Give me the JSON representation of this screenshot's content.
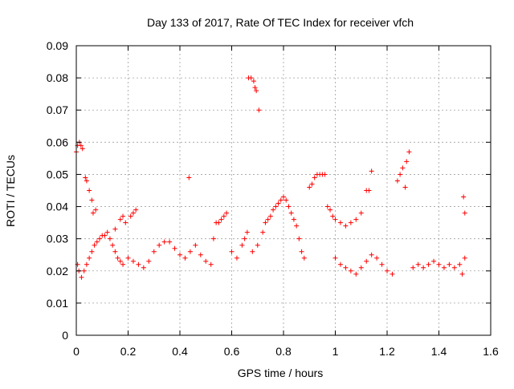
{
  "chart_data": {
    "type": "scatter",
    "title": "Day 133 of 2017, Rate Of TEC Index for receiver vfch",
    "xlabel": "GPS time / hours",
    "ylabel": "ROTI / TECUs",
    "xlim": [
      0,
      1.6
    ],
    "ylim": [
      0,
      0.09
    ],
    "xticks": [
      "0",
      "0.2",
      "0.4",
      "0.6",
      "0.8",
      "1",
      "1.2",
      "1.4",
      "1.6"
    ],
    "yticks": [
      "0",
      "0.01",
      "0.02",
      "0.03",
      "0.04",
      "0.05",
      "0.06",
      "0.07",
      "0.08",
      "0.09"
    ],
    "grid": true,
    "marker": "plus",
    "color": "#ff0000",
    "series": [
      {
        "points": [
          [
            0.0,
            0.057
          ],
          [
            0.005,
            0.059
          ],
          [
            0.012,
            0.06
          ],
          [
            0.018,
            0.059
          ],
          [
            0.024,
            0.058
          ],
          [
            0.035,
            0.049
          ],
          [
            0.04,
            0.048
          ],
          [
            0.05,
            0.045
          ],
          [
            0.06,
            0.042
          ],
          [
            0.065,
            0.038
          ],
          [
            0.075,
            0.039
          ],
          [
            0.005,
            0.022
          ],
          [
            0.01,
            0.02
          ],
          [
            0.02,
            0.018
          ],
          [
            0.03,
            0.02
          ],
          [
            0.04,
            0.022
          ],
          [
            0.05,
            0.024
          ],
          [
            0.06,
            0.026
          ],
          [
            0.07,
            0.028
          ],
          [
            0.08,
            0.029
          ],
          [
            0.09,
            0.03
          ],
          [
            0.1,
            0.031
          ],
          [
            0.11,
            0.031
          ],
          [
            0.12,
            0.032
          ],
          [
            0.13,
            0.03
          ],
          [
            0.14,
            0.028
          ],
          [
            0.15,
            0.026
          ],
          [
            0.16,
            0.024
          ],
          [
            0.17,
            0.023
          ],
          [
            0.18,
            0.022
          ],
          [
            0.15,
            0.033
          ],
          [
            0.17,
            0.036
          ],
          [
            0.18,
            0.037
          ],
          [
            0.19,
            0.035
          ],
          [
            0.21,
            0.037
          ],
          [
            0.22,
            0.038
          ],
          [
            0.23,
            0.039
          ],
          [
            0.2,
            0.024
          ],
          [
            0.22,
            0.023
          ],
          [
            0.24,
            0.022
          ],
          [
            0.26,
            0.021
          ],
          [
            0.28,
            0.023
          ],
          [
            0.3,
            0.026
          ],
          [
            0.32,
            0.028
          ],
          [
            0.34,
            0.029
          ],
          [
            0.36,
            0.029
          ],
          [
            0.38,
            0.027
          ],
          [
            0.4,
            0.025
          ],
          [
            0.42,
            0.024
          ],
          [
            0.435,
            0.049
          ],
          [
            0.44,
            0.026
          ],
          [
            0.46,
            0.028
          ],
          [
            0.48,
            0.025
          ],
          [
            0.5,
            0.023
          ],
          [
            0.52,
            0.022
          ],
          [
            0.53,
            0.03
          ],
          [
            0.54,
            0.035
          ],
          [
            0.55,
            0.035
          ],
          [
            0.56,
            0.036
          ],
          [
            0.57,
            0.037
          ],
          [
            0.58,
            0.038
          ],
          [
            0.6,
            0.026
          ],
          [
            0.62,
            0.024
          ],
          [
            0.64,
            0.028
          ],
          [
            0.65,
            0.03
          ],
          [
            0.66,
            0.032
          ],
          [
            0.665,
            0.08
          ],
          [
            0.675,
            0.08
          ],
          [
            0.685,
            0.079
          ],
          [
            0.69,
            0.077
          ],
          [
            0.695,
            0.076
          ],
          [
            0.705,
            0.07
          ],
          [
            0.68,
            0.026
          ],
          [
            0.7,
            0.028
          ],
          [
            0.72,
            0.032
          ],
          [
            0.73,
            0.035
          ],
          [
            0.74,
            0.036
          ],
          [
            0.75,
            0.037
          ],
          [
            0.76,
            0.039
          ],
          [
            0.77,
            0.04
          ],
          [
            0.78,
            0.041
          ],
          [
            0.79,
            0.042
          ],
          [
            0.8,
            0.043
          ],
          [
            0.81,
            0.042
          ],
          [
            0.82,
            0.04
          ],
          [
            0.83,
            0.038
          ],
          [
            0.84,
            0.036
          ],
          [
            0.85,
            0.034
          ],
          [
            0.86,
            0.03
          ],
          [
            0.87,
            0.026
          ],
          [
            0.88,
            0.024
          ],
          [
            0.9,
            0.046
          ],
          [
            0.91,
            0.047
          ],
          [
            0.92,
            0.049
          ],
          [
            0.93,
            0.05
          ],
          [
            0.94,
            0.05
          ],
          [
            0.95,
            0.05
          ],
          [
            0.96,
            0.05
          ],
          [
            0.97,
            0.04
          ],
          [
            0.98,
            0.039
          ],
          [
            0.99,
            0.037
          ],
          [
            1.0,
            0.036
          ],
          [
            1.02,
            0.035
          ],
          [
            1.04,
            0.034
          ],
          [
            1.06,
            0.035
          ],
          [
            1.08,
            0.036
          ],
          [
            1.1,
            0.038
          ],
          [
            1.12,
            0.045
          ],
          [
            1.13,
            0.045
          ],
          [
            1.14,
            0.051
          ],
          [
            1.0,
            0.024
          ],
          [
            1.02,
            0.022
          ],
          [
            1.04,
            0.021
          ],
          [
            1.06,
            0.02
          ],
          [
            1.08,
            0.019
          ],
          [
            1.1,
            0.021
          ],
          [
            1.12,
            0.023
          ],
          [
            1.14,
            0.025
          ],
          [
            1.16,
            0.024
          ],
          [
            1.18,
            0.022
          ],
          [
            1.2,
            0.02
          ],
          [
            1.22,
            0.019
          ],
          [
            1.24,
            0.048
          ],
          [
            1.25,
            0.05
          ],
          [
            1.26,
            0.052
          ],
          [
            1.27,
            0.046
          ],
          [
            1.275,
            0.054
          ],
          [
            1.285,
            0.057
          ],
          [
            1.3,
            0.021
          ],
          [
            1.32,
            0.022
          ],
          [
            1.34,
            0.021
          ],
          [
            1.36,
            0.022
          ],
          [
            1.38,
            0.023
          ],
          [
            1.4,
            0.022
          ],
          [
            1.42,
            0.021
          ],
          [
            1.44,
            0.022
          ],
          [
            1.46,
            0.021
          ],
          [
            1.48,
            0.022
          ],
          [
            1.495,
            0.043
          ],
          [
            1.5,
            0.038
          ],
          [
            1.5,
            0.024
          ],
          [
            1.49,
            0.019
          ]
        ]
      }
    ]
  }
}
